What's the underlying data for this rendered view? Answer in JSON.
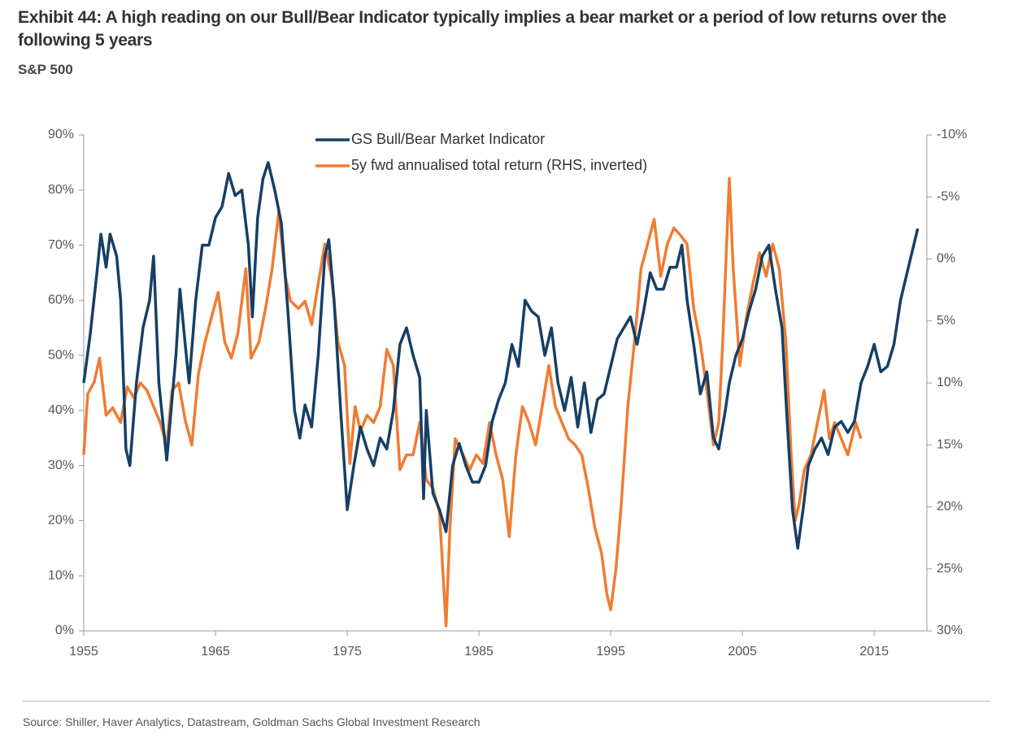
{
  "chart_data": {
    "type": "line",
    "title": "Exhibit 44: A high reading on our Bull/Bear Indicator typically implies a bear market or a period of low returns over the following 5 years",
    "subtitle": "S&P 500",
    "source": "Source: Shiller, Haver Analytics, Datastream, Goldman Sachs Global Investment Research",
    "xlim": [
      1955,
      2019
    ],
    "xticks": [
      1955,
      1965,
      1975,
      1985,
      1995,
      2005,
      2015
    ],
    "ylim": [
      0,
      90
    ],
    "yticks": [
      {
        "value": 0,
        "label": "0%"
      },
      {
        "value": 10,
        "label": "10%"
      },
      {
        "value": 20,
        "label": "20%"
      },
      {
        "value": 30,
        "label": "30%"
      },
      {
        "value": 40,
        "label": "40%"
      },
      {
        "value": 50,
        "label": "50%"
      },
      {
        "value": 60,
        "label": "60%"
      },
      {
        "value": 70,
        "label": "70%"
      },
      {
        "value": 80,
        "label": "80%"
      },
      {
        "value": 90,
        "label": "90%"
      }
    ],
    "y2lim": [
      -10,
      30
    ],
    "y2_inverted": true,
    "y2ticks": [
      {
        "value": -10,
        "label": "-10%"
      },
      {
        "value": -5,
        "label": "-5%"
      },
      {
        "value": 0,
        "label": "0%"
      },
      {
        "value": 5,
        "label": "5%"
      },
      {
        "value": 10,
        "label": "10%"
      },
      {
        "value": 15,
        "label": "15%"
      },
      {
        "value": 20,
        "label": "20%"
      },
      {
        "value": 25,
        "label": "25%"
      },
      {
        "value": 30,
        "label": "30%"
      }
    ],
    "legend": "top-center",
    "series": [
      {
        "name": "GS Bull/Bear Market Indicator",
        "color": "#163f66",
        "axis": "y",
        "x": [
          1955,
          1955.5,
          1956,
          1956.3,
          1956.7,
          1957,
          1957.5,
          1957.8,
          1958.2,
          1958.5,
          1959,
          1959.5,
          1960,
          1960.3,
          1960.7,
          1961.3,
          1961.7,
          1962,
          1962.3,
          1962.7,
          1963,
          1963.5,
          1964,
          1964.5,
          1965,
          1965.5,
          1966,
          1966.5,
          1967,
          1967.5,
          1967.8,
          1968.2,
          1968.6,
          1969,
          1969.5,
          1970,
          1970.5,
          1971,
          1971.4,
          1971.8,
          1972.3,
          1972.8,
          1973.3,
          1973.6,
          1974,
          1974.5,
          1975,
          1975.5,
          1976,
          1976.5,
          1977,
          1977.5,
          1978,
          1978.5,
          1979,
          1979.5,
          1980,
          1980.5,
          1980.8,
          1981,
          1981.5,
          1982,
          1982.5,
          1983,
          1983.5,
          1984,
          1984.5,
          1985,
          1985.5,
          1986,
          1986.5,
          1987,
          1987.5,
          1988,
          1988.5,
          1989,
          1989.5,
          1990,
          1990.5,
          1991,
          1991.5,
          1992,
          1992.5,
          1993,
          1993.5,
          1994,
          1994.5,
          1995,
          1995.5,
          1996,
          1996.5,
          1997,
          1997.5,
          1998,
          1998.5,
          1999,
          1999.5,
          2000,
          2000.4,
          2000.8,
          2001.3,
          2001.8,
          2002.3,
          2002.8,
          2003.2,
          2003.7,
          2004,
          2004.5,
          2005,
          2005.5,
          2006,
          2006.5,
          2007,
          2007.5,
          2008,
          2008.4,
          2008.8,
          2009.2,
          2009.6,
          2010,
          2010.5,
          2011,
          2011.5,
          2012,
          2012.5,
          2013,
          2013.5,
          2014,
          2014.5,
          2015,
          2015.5,
          2016,
          2016.5,
          2017,
          2017.5,
          2018,
          2018.3
        ],
        "values": [
          45,
          54,
          65,
          72,
          66,
          72,
          68,
          60,
          33,
          30,
          45,
          55,
          60,
          68,
          45,
          31,
          42,
          50,
          62,
          52,
          45,
          60,
          70,
          70,
          75,
          77,
          83,
          79,
          80,
          70,
          57,
          75,
          82,
          85,
          80,
          74,
          58,
          40,
          35,
          41,
          37,
          50,
          68,
          71,
          60,
          40,
          22,
          30,
          37,
          33,
          30,
          35,
          33,
          40,
          52,
          55,
          50,
          46,
          24,
          40,
          25,
          22,
          18,
          30,
          34,
          30,
          27,
          27,
          30,
          38,
          42,
          45,
          52,
          48,
          60,
          58,
          57,
          50,
          55,
          45,
          40,
          46,
          37,
          45,
          36,
          42,
          43,
          48,
          53,
          55,
          57,
          52,
          58,
          65,
          62,
          62,
          66,
          66,
          70,
          60,
          52,
          43,
          47,
          35,
          33,
          40,
          45,
          50,
          53,
          58,
          62,
          68,
          70,
          62,
          55,
          38,
          22,
          15,
          22,
          30,
          33,
          35,
          32,
          37,
          38,
          36,
          38,
          45,
          48,
          52,
          47,
          48,
          52,
          60,
          65,
          70,
          73
        ]
      },
      {
        "name": "5y fwd annualised total return (RHS, inverted)",
        "color": "#f07c32",
        "axis": "y2",
        "x": [
          1955,
          1955.3,
          1955.8,
          1956.2,
          1956.7,
          1957.2,
          1957.8,
          1958.3,
          1958.8,
          1959.3,
          1959.8,
          1960.3,
          1960.8,
          1961.3,
          1961.7,
          1962.2,
          1962.7,
          1963.2,
          1963.7,
          1964.2,
          1964.7,
          1965.2,
          1965.7,
          1966.2,
          1966.7,
          1967.3,
          1967.7,
          1968.3,
          1968.8,
          1969.3,
          1969.8,
          1970.3,
          1970.7,
          1971.3,
          1971.8,
          1972.3,
          1972.8,
          1973.3,
          1973.8,
          1974.3,
          1974.8,
          1975.2,
          1975.6,
          1976,
          1976.5,
          1977,
          1977.5,
          1978,
          1978.5,
          1979,
          1979.5,
          1980,
          1980.5,
          1981,
          1981.5,
          1982,
          1982.5,
          1982.8,
          1983.2,
          1983.8,
          1984.3,
          1984.8,
          1985.3,
          1985.8,
          1986.3,
          1986.8,
          1987.3,
          1987.8,
          1988.3,
          1988.8,
          1989.3,
          1989.8,
          1990.3,
          1990.8,
          1991.3,
          1991.8,
          1992.3,
          1992.8,
          1993.3,
          1993.8,
          1994.3,
          1994.7,
          1995,
          1995.4,
          1995.8,
          1996.3,
          1996.8,
          1997.3,
          1997.8,
          1998.3,
          1998.8,
          1999.3,
          1999.8,
          2000.3,
          2000.8,
          2001.3,
          2001.8,
          2002.3,
          2002.8,
          2003.2,
          2003.5,
          2003.8,
          2004,
          2004.3,
          2004.8,
          2005.3,
          2005.8,
          2006.3,
          2006.8,
          2007.3,
          2007.8,
          2008.3,
          2008.7,
          2009,
          2009.3,
          2009.7,
          2010.2,
          2010.7,
          2011.2,
          2011.6,
          2012,
          2012.5,
          2013,
          2013.6,
          2014
        ],
        "values": [
          15.8,
          10.9,
          9.9,
          8,
          12.6,
          12,
          13.2,
          10.3,
          11.2,
          10,
          10.6,
          11.9,
          13.2,
          15,
          10.6,
          10,
          13,
          15,
          9.3,
          6.7,
          4.7,
          2.7,
          6.7,
          8,
          6,
          0.8,
          8,
          6.7,
          4,
          0.8,
          -3.8,
          1.4,
          3.4,
          4,
          3.4,
          5.3,
          2,
          -1.2,
          1.4,
          6.7,
          8.6,
          16.5,
          11.9,
          13.9,
          12.6,
          13.2,
          11.9,
          7.3,
          8.6,
          17,
          15.8,
          15.8,
          13.2,
          17.8,
          18.5,
          20.4,
          29.6,
          21.7,
          14.5,
          15.8,
          17,
          15.8,
          16.5,
          13.2,
          15.8,
          17.8,
          22.4,
          15.8,
          11.9,
          13.2,
          15,
          11.9,
          8.6,
          11.9,
          13.2,
          14.5,
          15,
          15.8,
          18.5,
          21.7,
          23.7,
          27,
          28.3,
          25,
          19.8,
          11.9,
          6.7,
          0.8,
          -1.2,
          -3.2,
          1.4,
          -1.2,
          -2.5,
          -1.9,
          -1.2,
          4,
          6.7,
          10.6,
          15,
          13.2,
          6.7,
          -1.2,
          -6.5,
          0.8,
          8.6,
          4.7,
          2,
          -0.5,
          1.4,
          -1.2,
          0.8,
          6.7,
          15.8,
          21.1,
          19.8,
          17,
          15.8,
          13.2,
          10.6,
          14.5,
          13.2,
          14.5,
          15.8,
          13.2,
          14.5
        ]
      }
    ]
  }
}
